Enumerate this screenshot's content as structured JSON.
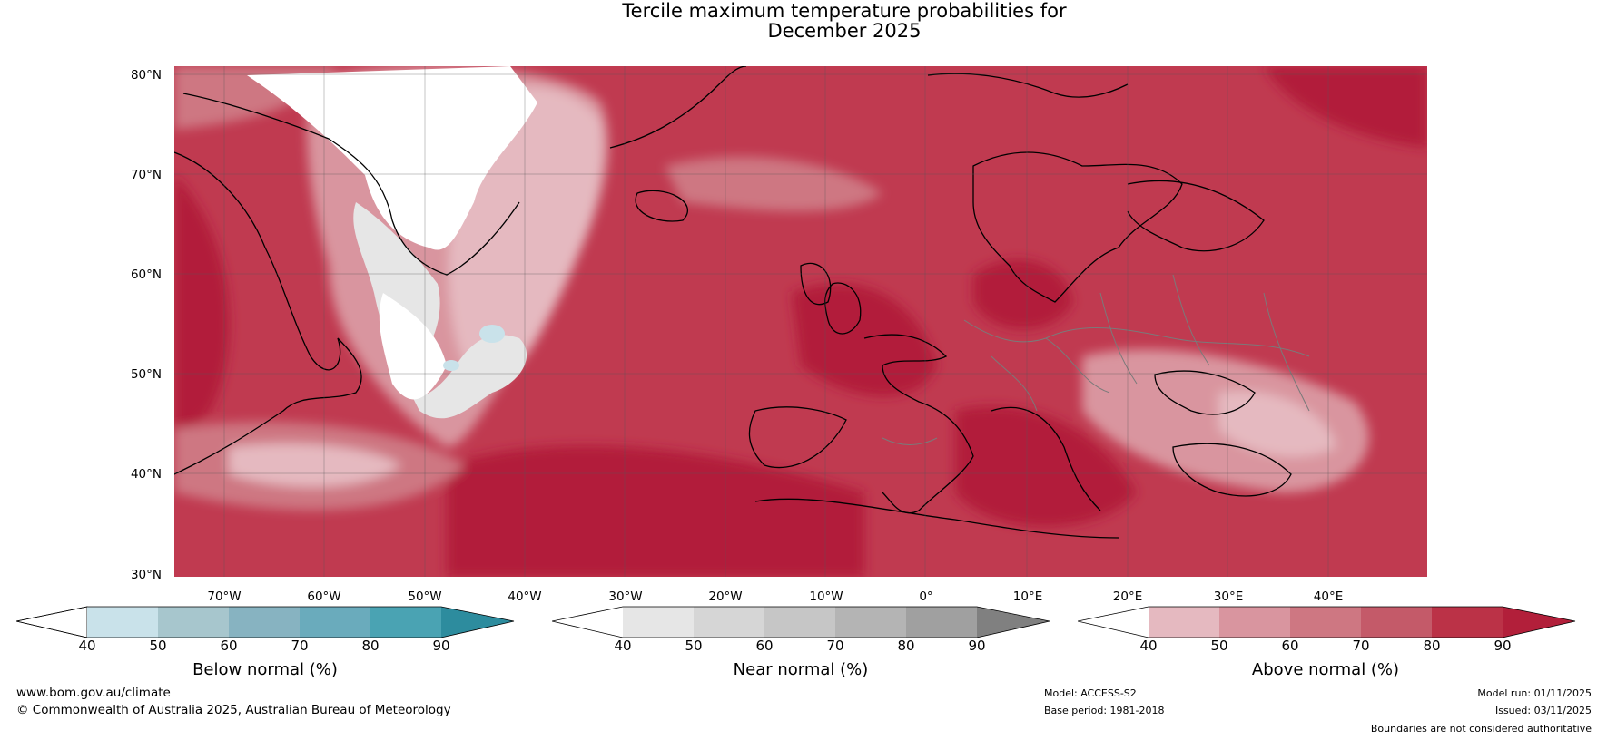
{
  "title_line1": "Tercile maximum temperature probabilities for",
  "title_line2": "December 2025",
  "lat_labels": [
    "80°N",
    "70°N",
    "60°N",
    "50°N",
    "40°N",
    "30°N"
  ],
  "lon_labels": [
    "70°W",
    "60°W",
    "50°W",
    "40°W",
    "30°W",
    "20°W",
    "10°W",
    "0°",
    "10°E",
    "20°E",
    "30°E",
    "40°E"
  ],
  "colorbars": [
    {
      "label": "Below normal (%)",
      "ticks": [
        "40",
        "50",
        "60",
        "70",
        "80",
        "90"
      ],
      "colors": [
        "#ffffff",
        "#c9e2ea",
        "#a7c6cd",
        "#87b3c1",
        "#6aabbc",
        "#4aa3b3",
        "#2d8c9e"
      ]
    },
    {
      "label": "Near normal (%)",
      "ticks": [
        "40",
        "50",
        "60",
        "70",
        "80",
        "90"
      ],
      "colors": [
        "#ffffff",
        "#e6e6e6",
        "#d6d6d6",
        "#c6c6c6",
        "#b4b4b4",
        "#a0a0a0",
        "#808080"
      ]
    },
    {
      "label": "Above normal (%)",
      "ticks": [
        "40",
        "50",
        "60",
        "70",
        "80",
        "90"
      ],
      "colors": [
        "#ffffff",
        "#e5b9c0",
        "#d9959f",
        "#ce7782",
        "#c45a69",
        "#bb3247",
        "#b21f3a"
      ]
    }
  ],
  "footer": {
    "website": "www.bom.gov.au/climate",
    "copyright": "© Commonwealth of Australia 2025, Australian Bureau of Meteorology",
    "model": "Model: ACCESS-S2",
    "base_period": "Base period: 1981-2018",
    "model_run": "Model run: 01/11/2025",
    "issued": "Issued: 03/11/2025",
    "disclaimer": "Boundaries are not considered authoritative"
  }
}
